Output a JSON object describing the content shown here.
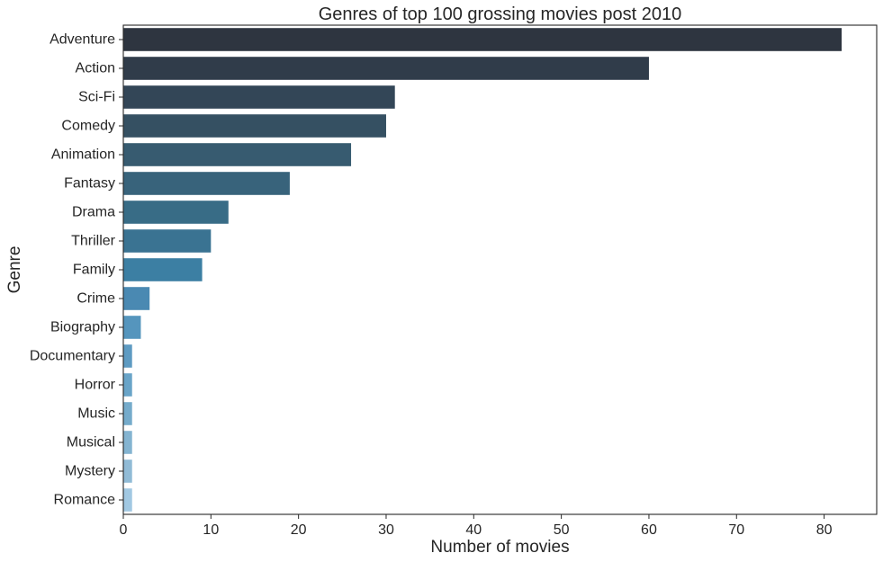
{
  "chart_data": {
    "type": "bar",
    "orientation": "horizontal",
    "title": "Genres of top 100 grossing movies post 2010",
    "xlabel": "Number of movies",
    "ylabel": "Genre",
    "categories": [
      "Adventure",
      "Action",
      "Sci-Fi",
      "Comedy",
      "Animation",
      "Fantasy",
      "Drama",
      "Thriller",
      "Family",
      "Crime",
      "Biography",
      "Documentary",
      "Horror",
      "Music",
      "Musical",
      "Mystery",
      "Romance"
    ],
    "values": [
      82,
      60,
      31,
      30,
      26,
      19,
      12,
      10,
      9,
      3,
      2,
      1,
      1,
      1,
      1,
      1,
      1
    ],
    "xlim": [
      0,
      86
    ],
    "xticks": [
      0,
      10,
      20,
      30,
      40,
      50,
      60,
      70,
      80
    ],
    "xtick_labels": [
      "0",
      "10",
      "20",
      "30",
      "40",
      "50",
      "60",
      "70",
      "80"
    ],
    "grid": false,
    "palette": [
      "#2e3540",
      "#303c4a",
      "#334657",
      "#355062",
      "#375b70",
      "#38637b",
      "#386c86",
      "#3a7392",
      "#3c7fa3",
      "#4a89b2",
      "#5595bd",
      "#5e9bc2",
      "#69a4c8",
      "#75abcb",
      "#84b4d1",
      "#91bbd6",
      "#a1c8e2"
    ]
  }
}
